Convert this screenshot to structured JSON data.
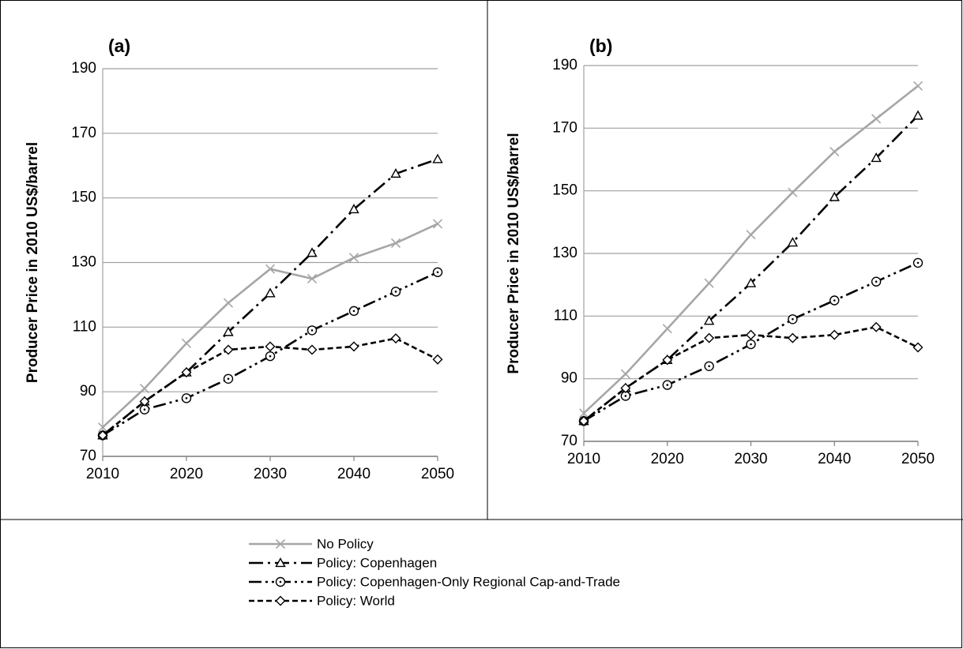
{
  "chart_data": [
    {
      "type": "line",
      "title": "(a)",
      "y_label": "Producer Price in 2010 US$/barrel",
      "x": [
        2010,
        2015,
        2020,
        2025,
        2030,
        2035,
        2040,
        2045,
        2050
      ],
      "xlim": [
        2010,
        2050
      ],
      "xticks": [
        2010,
        2020,
        2030,
        2040,
        2050
      ],
      "ylim": [
        70,
        190
      ],
      "yticks": [
        70,
        90,
        110,
        130,
        150,
        170,
        190
      ],
      "grid": true,
      "series": [
        {
          "name": "No Policy",
          "color": "#a6a6a6",
          "marker": "x",
          "dash": "solid",
          "values": [
            79,
            91,
            105,
            117.5,
            128,
            125,
            131.5,
            136,
            142
          ]
        },
        {
          "name": "Policy: Copenhagen",
          "color": "#000000",
          "marker": "triangle",
          "dash": "long-dash-dot",
          "values": [
            76.5,
            87,
            96,
            108.5,
            120.5,
            133,
            146.5,
            157.5,
            162
          ]
        },
        {
          "name": "Policy: Copenhagen-Only Regional Cap-and-Trade",
          "color": "#000000",
          "marker": "circle",
          "dash": "long-dash-dot-dot",
          "values": [
            76.5,
            84.5,
            88,
            94,
            101,
            109,
            115,
            121,
            127
          ]
        },
        {
          "name": "Policy: World",
          "color": "#000000",
          "marker": "diamond",
          "dash": "dash",
          "values": [
            76.5,
            87,
            96,
            103,
            104,
            103,
            104,
            106.5,
            100
          ]
        }
      ]
    },
    {
      "type": "line",
      "title": "(b)",
      "y_label": "Producer Price in 2010 US$/barrel",
      "x": [
        2010,
        2015,
        2020,
        2025,
        2030,
        2035,
        2040,
        2045,
        2050
      ],
      "xlim": [
        2010,
        2050
      ],
      "xticks": [
        2010,
        2020,
        2030,
        2040,
        2050
      ],
      "ylim": [
        70,
        190
      ],
      "yticks": [
        70,
        90,
        110,
        130,
        150,
        170,
        190
      ],
      "grid": true,
      "series": [
        {
          "color": "#a6a6a6",
          "marker": "x",
          "dash": "solid",
          "values": [
            79,
            91.5,
            106,
            120.5,
            136,
            149.5,
            162.5,
            173,
            183.5
          ]
        },
        {
          "color": "#000000",
          "marker": "triangle",
          "dash": "long-dash-dot",
          "values": [
            76.5,
            87,
            96,
            108.5,
            120.5,
            133.5,
            148,
            160.5,
            174
          ]
        },
        {
          "color": "#000000",
          "marker": "circle",
          "dash": "long-dash-dot-dot",
          "values": [
            76.5,
            84.5,
            88,
            94,
            101,
            109,
            115,
            121,
            127
          ]
        },
        {
          "color": "#000000",
          "marker": "diamond",
          "dash": "dash",
          "values": [
            76.5,
            87,
            96,
            103,
            104,
            103,
            104,
            106.5,
            100
          ]
        }
      ]
    }
  ]
}
